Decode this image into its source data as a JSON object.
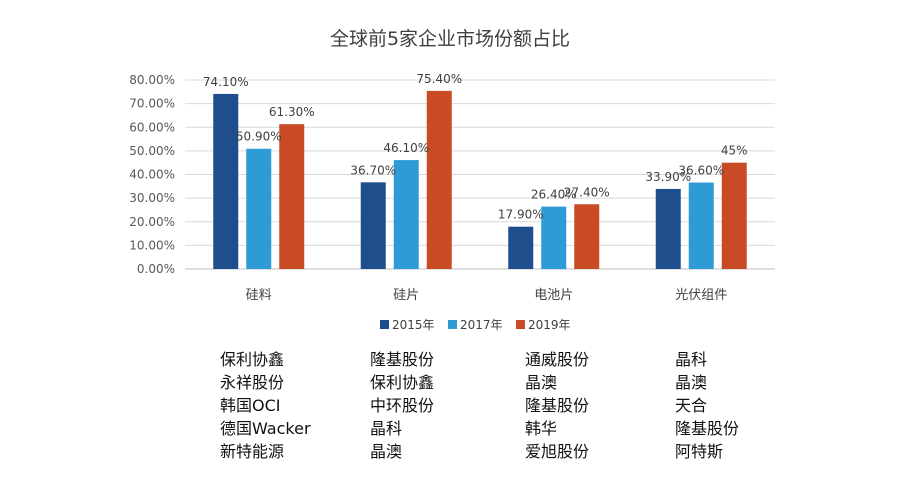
{
  "chart_data": {
    "type": "bar",
    "title": "全球前5家企业市场份额占比",
    "categories": [
      "硅料",
      "硅片",
      "电池片",
      "光伏组件"
    ],
    "series": [
      {
        "name": "2015年",
        "color": "#1F4E8C",
        "values": [
          74.1,
          36.7,
          17.9,
          33.9
        ],
        "labels": [
          "74.10%",
          "36.70%",
          "17.90%",
          "33.90%"
        ]
      },
      {
        "name": "2017年",
        "color": "#2E9BD6",
        "values": [
          50.9,
          46.1,
          26.4,
          36.6
        ],
        "labels": [
          "50.90%",
          "46.10%",
          "26.40%",
          "36.60%"
        ]
      },
      {
        "name": "2019年",
        "color": "#C84B26",
        "values": [
          61.3,
          75.4,
          27.4,
          45.0
        ],
        "labels": [
          "61.30%",
          "75.40%",
          "27.40%",
          "45%"
        ]
      }
    ],
    "y_ticks": [
      "0.00%",
      "10.00%",
      "20.00%",
      "30.00%",
      "40.00%",
      "50.00%",
      "60.00%",
      "70.00%",
      "80.00%"
    ],
    "ylim": [
      0,
      80
    ],
    "grid": true,
    "legend_position": "bottom"
  },
  "companies": [
    [
      "保利协鑫",
      "永祥股份",
      "韩国OCI",
      "德国Wacker",
      "新特能源"
    ],
    [
      "隆基股份",
      "保利协鑫",
      "中环股份",
      "晶科",
      "晶澳"
    ],
    [
      "通威股份",
      "晶澳",
      "隆基股份",
      "韩华",
      "爱旭股份"
    ],
    [
      "晶科",
      "晶澳",
      "天合",
      "隆基股份",
      "阿特斯"
    ]
  ]
}
